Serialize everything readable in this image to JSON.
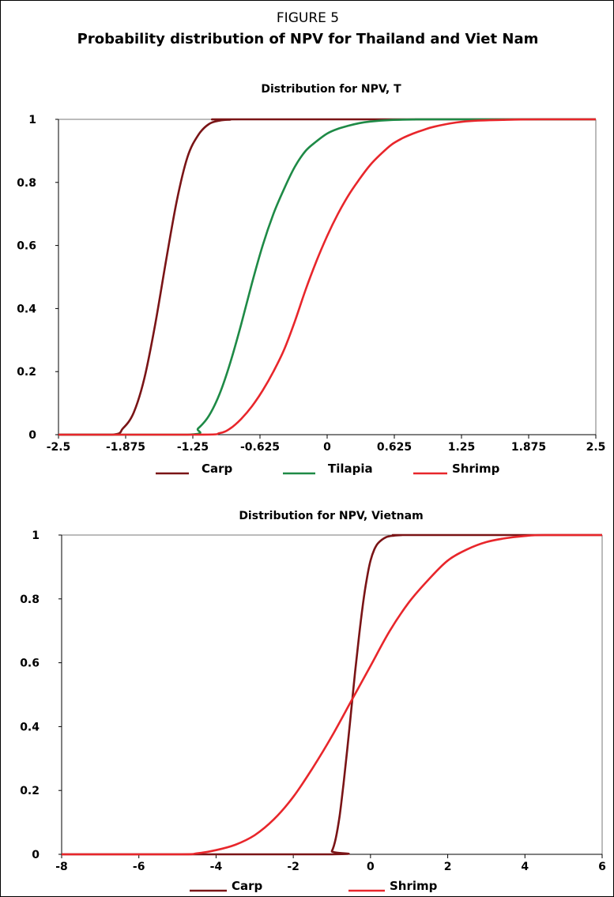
{
  "figure": {
    "label": "FIGURE 5",
    "title": "Probability distribution of NPV for Thailand and Viet Nam"
  },
  "colors": {
    "carp": "#7a1416",
    "tilapia": "#1e8a46",
    "shrimp": "#e8262b"
  },
  "chart_data": [
    {
      "type": "line",
      "title": "Distribution for NPV, T",
      "xlabel": "",
      "ylabel": "",
      "xlim": [
        -2.5,
        2.5
      ],
      "ylim": [
        0,
        1
      ],
      "x_ticks": [
        "-2.5",
        "-1.875",
        "-1.25",
        "-0.625",
        "0",
        "0.625",
        "1.25",
        "1.875",
        "2.5"
      ],
      "y_ticks": [
        "0",
        "0.2",
        "0.4",
        "0.6",
        "0.8",
        "1"
      ],
      "grid": false,
      "legend": "bottom",
      "series": [
        {
          "name": "Carp",
          "color": "#7a1416",
          "x": [
            -2.5,
            -2.0,
            -1.9,
            -1.8,
            -1.7,
            -1.6,
            -1.5,
            -1.4,
            -1.3,
            -1.2,
            -1.1,
            -1.0,
            -0.9,
            -0.8,
            2.5
          ],
          "y": [
            0,
            0,
            0.02,
            0.07,
            0.18,
            0.35,
            0.55,
            0.74,
            0.88,
            0.95,
            0.985,
            0.996,
            0.999,
            1,
            1
          ]
        },
        {
          "name": "Tilapia",
          "color": "#1e8a46",
          "x": [
            -2.5,
            -1.3,
            -1.2,
            -1.1,
            -1.0,
            -0.9,
            -0.8,
            -0.7,
            -0.6,
            -0.5,
            -0.4,
            -0.3,
            -0.2,
            -0.1,
            0.0,
            0.1,
            0.2,
            0.3,
            0.4,
            0.6,
            0.8,
            1.0,
            2.5
          ],
          "y": [
            0,
            0,
            0.02,
            0.06,
            0.13,
            0.23,
            0.35,
            0.48,
            0.6,
            0.7,
            0.78,
            0.85,
            0.9,
            0.93,
            0.955,
            0.97,
            0.98,
            0.988,
            0.993,
            0.998,
            0.9995,
            1,
            1
          ]
        },
        {
          "name": "Shrimp",
          "color": "#e8262b",
          "x": [
            -2.5,
            -1.2,
            -1.0,
            -0.9,
            -0.8,
            -0.7,
            -0.6,
            -0.5,
            -0.4,
            -0.3,
            -0.2,
            -0.1,
            0.0,
            0.1,
            0.2,
            0.3,
            0.4,
            0.5,
            0.6,
            0.7,
            0.8,
            0.9,
            1.0,
            1.2,
            1.4,
            1.6,
            1.8,
            2.0,
            2.5
          ],
          "y": [
            0,
            0,
            0.005,
            0.02,
            0.05,
            0.09,
            0.14,
            0.2,
            0.27,
            0.36,
            0.46,
            0.55,
            0.63,
            0.7,
            0.76,
            0.81,
            0.855,
            0.89,
            0.92,
            0.94,
            0.955,
            0.967,
            0.977,
            0.99,
            0.996,
            0.998,
            0.9995,
            1,
            1
          ]
        }
      ]
    },
    {
      "type": "line",
      "title": "Distribution for NPV, Vietnam",
      "xlabel": "",
      "ylabel": "",
      "xlim": [
        -8,
        6
      ],
      "ylim": [
        0,
        1
      ],
      "x_ticks": [
        "-8",
        "-6",
        "-4",
        "-2",
        "0",
        "2",
        "4",
        "6"
      ],
      "y_ticks": [
        "0",
        "0.2",
        "0.4",
        "0.6",
        "0.8",
        "1"
      ],
      "grid": false,
      "legend": "bottom",
      "series": [
        {
          "name": "Carp",
          "color": "#7a1416",
          "x": [
            -8,
            -1.1,
            -1.0,
            -0.9,
            -0.8,
            -0.7,
            -0.6,
            -0.5,
            -0.4,
            -0.3,
            -0.2,
            -0.1,
            0.0,
            0.1,
            0.2,
            0.4,
            0.6,
            0.8,
            1.0,
            6
          ],
          "y": [
            0,
            0,
            0.01,
            0.05,
            0.12,
            0.22,
            0.33,
            0.45,
            0.57,
            0.68,
            0.78,
            0.86,
            0.92,
            0.955,
            0.975,
            0.993,
            0.998,
            0.9995,
            1,
            1
          ]
        },
        {
          "name": "Shrimp",
          "color": "#e8262b",
          "x": [
            -8,
            -5,
            -4.5,
            -4,
            -3.5,
            -3,
            -2.5,
            -2,
            -1.5,
            -1,
            -0.5,
            0,
            0.5,
            1,
            1.5,
            2,
            2.5,
            3,
            3.5,
            4,
            4.5,
            6
          ],
          "y": [
            0,
            0,
            0.003,
            0.013,
            0.03,
            0.06,
            0.11,
            0.18,
            0.27,
            0.37,
            0.48,
            0.59,
            0.7,
            0.79,
            0.86,
            0.92,
            0.955,
            0.978,
            0.99,
            0.997,
            1,
            1
          ]
        }
      ]
    }
  ]
}
